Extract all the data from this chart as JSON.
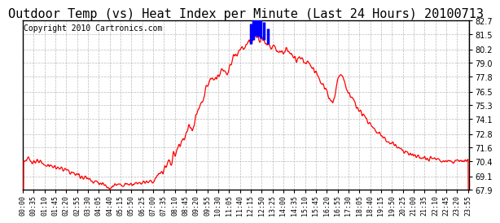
{
  "title": "Outdoor Temp (vs) Heat Index per Minute (Last 24 Hours) 20100713",
  "copyright": "Copyright 2010 Cartronics.com",
  "ylim": [
    67.9,
    82.7
  ],
  "yticks": [
    67.9,
    69.1,
    70.4,
    71.6,
    72.8,
    74.1,
    75.3,
    76.5,
    77.8,
    79.0,
    80.2,
    81.5,
    82.7
  ],
  "bg_color": "#ffffff",
  "grid_color": "#aaaaaa",
  "line_color_red": "#ff0000",
  "line_color_blue": "#0000ff",
  "title_fontsize": 11,
  "copyright_fontsize": 7,
  "spike_times": [
    735,
    742,
    750,
    758,
    768,
    778,
    790
  ],
  "spike_heights": [
    1.8,
    2.5,
    2.8,
    1.5,
    2.2,
    1.6,
    1.4
  ]
}
